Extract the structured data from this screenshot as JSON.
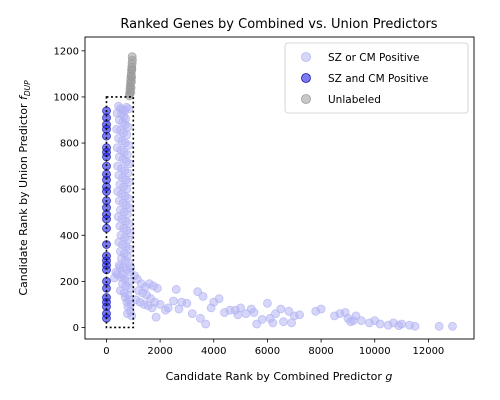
{
  "chart_data": {
    "type": "scatter",
    "title": "Ranked Genes by Combined vs. Union Predictors",
    "xlabel": "Candidate Rank by Combined Predictor g",
    "xlabel_main": "Candidate Rank by Combined Predictor ",
    "xlabel_symbol": "g",
    "ylabel": "Candidate Rank by Union Predictor f_DUP",
    "ylabel_main": "Candidate Rank by Union Predictor ",
    "ylabel_symbol": "f",
    "ylabel_subscript": "DUP",
    "xlim": [
      -800,
      13700
    ],
    "ylim": [
      -50,
      1260
    ],
    "xticks": [
      0,
      2000,
      4000,
      6000,
      8000,
      10000,
      12000
    ],
    "yticks": [
      0,
      200,
      400,
      600,
      800,
      1000,
      1200
    ],
    "grid": false,
    "legend_position": "top-right",
    "colors": {
      "sz_or_cm": "#b4b4f4",
      "sz_and_cm": "#2222ee",
      "unlabeled": "#9a9a9a",
      "box": "#000000"
    },
    "dotted_box": {
      "x0": 0,
      "x1": 1000,
      "y0": 0,
      "y1": 1000
    },
    "series": [
      {
        "name": "SZ or CM Positive",
        "style": "sz_or_cm",
        "points": [
          [
            450,
            960
          ],
          [
            520,
            950
          ],
          [
            600,
            945
          ],
          [
            680,
            940
          ],
          [
            750,
            955
          ],
          [
            820,
            948
          ],
          [
            400,
            930
          ],
          [
            560,
            925
          ],
          [
            650,
            915
          ],
          [
            720,
            905
          ],
          [
            480,
            900
          ],
          [
            600,
            890
          ],
          [
            700,
            880
          ],
          [
            800,
            870
          ],
          [
            380,
            860
          ],
          [
            520,
            855
          ],
          [
            640,
            845
          ],
          [
            760,
            835
          ],
          [
            450,
            820
          ],
          [
            580,
            810
          ],
          [
            700,
            800
          ],
          [
            820,
            790
          ],
          [
            400,
            780
          ],
          [
            540,
            770
          ],
          [
            660,
            760
          ],
          [
            780,
            750
          ],
          [
            480,
            740
          ],
          [
            620,
            730
          ],
          [
            740,
            720
          ],
          [
            860,
            710
          ],
          [
            420,
            700
          ],
          [
            560,
            690
          ],
          [
            680,
            680
          ],
          [
            800,
            670
          ],
          [
            460,
            660
          ],
          [
            600,
            650
          ],
          [
            720,
            640
          ],
          [
            840,
            630
          ],
          [
            500,
            620
          ],
          [
            640,
            610
          ],
          [
            760,
            600
          ],
          [
            420,
            590
          ],
          [
            560,
            580
          ],
          [
            700,
            570
          ],
          [
            820,
            560
          ],
          [
            480,
            550
          ],
          [
            620,
            540
          ],
          [
            740,
            530
          ],
          [
            860,
            520
          ],
          [
            520,
            510
          ],
          [
            660,
            500
          ],
          [
            780,
            490
          ],
          [
            440,
            480
          ],
          [
            580,
            470
          ],
          [
            720,
            460
          ],
          [
            840,
            450
          ],
          [
            500,
            440
          ],
          [
            640,
            430
          ],
          [
            760,
            420
          ],
          [
            880,
            410
          ],
          [
            540,
            400
          ],
          [
            680,
            390
          ],
          [
            800,
            380
          ],
          [
            460,
            370
          ],
          [
            600,
            360
          ],
          [
            740,
            350
          ],
          [
            860,
            340
          ],
          [
            520,
            330
          ],
          [
            660,
            320
          ],
          [
            780,
            310
          ],
          [
            560,
            300
          ],
          [
            700,
            290
          ],
          [
            820,
            280
          ],
          [
            480,
            270
          ],
          [
            620,
            260
          ],
          [
            760,
            250
          ],
          [
            880,
            240
          ],
          [
            400,
            230
          ],
          [
            540,
            220
          ],
          [
            680,
            210
          ],
          [
            820,
            200
          ],
          [
            600,
            190
          ],
          [
            740,
            180
          ],
          [
            880,
            170
          ],
          [
            520,
            160
          ],
          [
            660,
            150
          ],
          [
            800,
            140
          ],
          [
            700,
            130
          ],
          [
            840,
            120
          ],
          [
            760,
            110
          ],
          [
            900,
            100
          ],
          [
            800,
            90
          ],
          [
            880,
            70
          ],
          [
            940,
            50
          ],
          [
            780,
            60
          ],
          [
            350,
            240
          ],
          [
            300,
            215
          ],
          [
            500,
            260
          ],
          [
            600,
            230
          ],
          [
            900,
            260
          ],
          [
            1050,
            225
          ],
          [
            1150,
            210
          ],
          [
            1300,
            190
          ],
          [
            1450,
            175
          ],
          [
            1600,
            190
          ],
          [
            1750,
            180
          ],
          [
            1900,
            170
          ],
          [
            1200,
            160
          ],
          [
            1350,
            150
          ],
          [
            1500,
            140
          ],
          [
            1650,
            125
          ],
          [
            1800,
            110
          ],
          [
            2000,
            100
          ],
          [
            1100,
            120
          ],
          [
            1250,
            110
          ],
          [
            1400,
            100
          ],
          [
            1550,
            95
          ],
          [
            1700,
            85
          ],
          [
            1850,
            45
          ],
          [
            2200,
            75
          ],
          [
            2600,
            165
          ],
          [
            2800,
            110
          ],
          [
            2500,
            115
          ],
          [
            2300,
            85
          ],
          [
            3000,
            105
          ],
          [
            3200,
            60
          ],
          [
            3400,
            155
          ],
          [
            3600,
            135
          ],
          [
            2700,
            80
          ],
          [
            3900,
            85
          ],
          [
            4000,
            110
          ],
          [
            4200,
            125
          ],
          [
            4400,
            65
          ],
          [
            4600,
            75
          ],
          [
            3700,
            15
          ],
          [
            4900,
            55
          ],
          [
            5200,
            60
          ],
          [
            5400,
            80
          ],
          [
            5600,
            15
          ],
          [
            6000,
            105
          ],
          [
            6100,
            40
          ],
          [
            6300,
            60
          ],
          [
            6500,
            80
          ],
          [
            6800,
            70
          ],
          [
            7000,
            50
          ],
          [
            7200,
            55
          ],
          [
            7800,
            70
          ],
          [
            8000,
            80
          ],
          [
            5800,
            35
          ],
          [
            5000,
            85
          ],
          [
            6200,
            20
          ],
          [
            6600,
            25
          ],
          [
            6900,
            20
          ],
          [
            5500,
            65
          ],
          [
            8500,
            50
          ],
          [
            8700,
            60
          ],
          [
            8900,
            65
          ],
          [
            9000,
            40
          ],
          [
            9200,
            30
          ],
          [
            9300,
            50
          ],
          [
            9500,
            30
          ],
          [
            9800,
            20
          ],
          [
            10000,
            30
          ],
          [
            10200,
            15
          ],
          [
            10500,
            10
          ],
          [
            10700,
            20
          ],
          [
            11000,
            15
          ],
          [
            11300,
            10
          ],
          [
            11500,
            5
          ],
          [
            12400,
            5
          ],
          [
            12900,
            5
          ],
          [
            9100,
            25
          ],
          [
            10900,
            8
          ],
          [
            4800,
            75
          ],
          [
            3500,
            40
          ]
        ]
      },
      {
        "name": "SZ and CM Positive",
        "style": "sz_and_cm",
        "points": [
          [
            0,
            940
          ],
          [
            0,
            910
          ],
          [
            0,
            880
          ],
          [
            0,
            860
          ],
          [
            0,
            830
          ],
          [
            0,
            780
          ],
          [
            0,
            760
          ],
          [
            0,
            740
          ],
          [
            0,
            700
          ],
          [
            0,
            665
          ],
          [
            0,
            640
          ],
          [
            0,
            610
          ],
          [
            0,
            590
          ],
          [
            0,
            550
          ],
          [
            0,
            520
          ],
          [
            0,
            490
          ],
          [
            0,
            470
          ],
          [
            0,
            430
          ],
          [
            0,
            360
          ],
          [
            0,
            310
          ],
          [
            0,
            290
          ],
          [
            0,
            270
          ],
          [
            0,
            250
          ],
          [
            0,
            200
          ],
          [
            0,
            170
          ],
          [
            0,
            130
          ],
          [
            0,
            110
          ],
          [
            0,
            90
          ],
          [
            0,
            60
          ],
          [
            0,
            40
          ]
        ]
      },
      {
        "name": "Unlabeled",
        "style": "unlabeled",
        "points": [
          [
            960,
            1175
          ],
          [
            965,
            1160
          ],
          [
            955,
            1145
          ],
          [
            945,
            1130
          ],
          [
            935,
            1115
          ],
          [
            925,
            1100
          ],
          [
            915,
            1090
          ],
          [
            905,
            1075
          ],
          [
            895,
            1060
          ],
          [
            885,
            1045
          ],
          [
            875,
            1030
          ],
          [
            865,
            1015
          ],
          [
            855,
            1005
          ],
          [
            950,
            1120
          ],
          [
            940,
            1085
          ],
          [
            930,
            1065
          ],
          [
            920,
            1040
          ],
          [
            910,
            1020
          ]
        ]
      }
    ]
  }
}
